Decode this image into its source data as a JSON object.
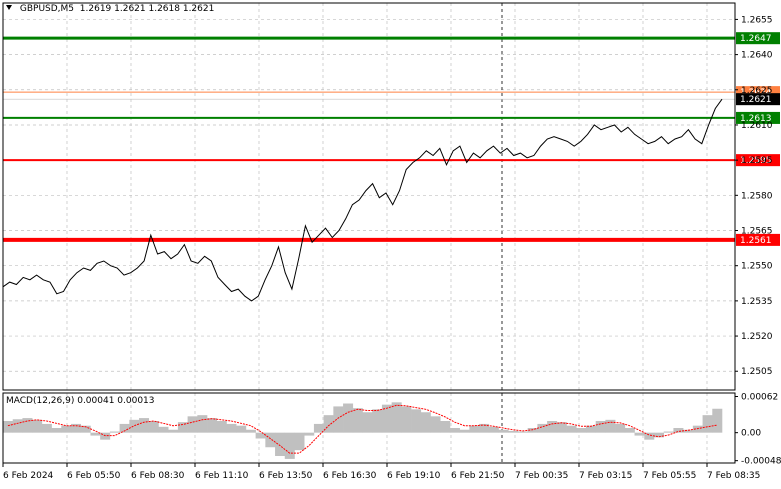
{
  "header": {
    "symbol": "GBPUSD,M5",
    "ohlc": "1.2619 1.2621 1.2618 1.2621"
  },
  "macd_header": "MACD(12,26,9) 0.00041 0.00013",
  "colors": {
    "price": "#000000",
    "support_resistance_red": "#ff0000",
    "target_green": "#008000",
    "orange_line": "#ff8040",
    "grid": "#c0c0c0",
    "histogram": "#c0c0c0",
    "signal": "#ff0000"
  },
  "chart_data": [
    {
      "type": "line",
      "title": "GBPUSD,M5",
      "ylim": [
        1.2497,
        1.2662
      ],
      "y_ticks": [
        "1.2655",
        "1.2640",
        "1.2625",
        "1.2610",
        "1.2595",
        "1.2580",
        "1.2565",
        "1.2550",
        "1.2535",
        "1.2520",
        "1.2505"
      ],
      "x_ticks": [
        "6 Feb 2024",
        "6 Feb 05:50",
        "6 Feb 08:30",
        "6 Feb 11:10",
        "6 Feb 13:50",
        "6 Feb 16:30",
        "6 Feb 19:10",
        "6 Feb 21:50",
        "7 Feb 00:35",
        "7 Feb 03:15",
        "7 Feb 05:55",
        "7 Feb 08:35"
      ],
      "price_path": [
        [
          0,
          1.2541
        ],
        [
          2,
          1.2543
        ],
        [
          4,
          1.2542
        ],
        [
          6,
          1.2545
        ],
        [
          8,
          1.2544
        ],
        [
          10,
          1.2546
        ],
        [
          12,
          1.2544
        ],
        [
          14,
          1.2543
        ],
        [
          16,
          1.2538
        ],
        [
          18,
          1.2539
        ],
        [
          20,
          1.2544
        ],
        [
          22,
          1.2547
        ],
        [
          24,
          1.2549
        ],
        [
          26,
          1.2548
        ],
        [
          28,
          1.2551
        ],
        [
          30,
          1.2552
        ],
        [
          32,
          1.255
        ],
        [
          34,
          1.2549
        ],
        [
          36,
          1.2546
        ],
        [
          38,
          1.2547
        ],
        [
          40,
          1.2549
        ],
        [
          42,
          1.2552
        ],
        [
          44,
          1.2563
        ],
        [
          46,
          1.2555
        ],
        [
          48,
          1.2556
        ],
        [
          50,
          1.2553
        ],
        [
          52,
          1.2555
        ],
        [
          54,
          1.2559
        ],
        [
          56,
          1.2552
        ],
        [
          58,
          1.2551
        ],
        [
          60,
          1.2554
        ],
        [
          62,
          1.2552
        ],
        [
          64,
          1.2545
        ],
        [
          66,
          1.2542
        ],
        [
          68,
          1.2539
        ],
        [
          70,
          1.254
        ],
        [
          72,
          1.2537
        ],
        [
          74,
          1.2535
        ],
        [
          76,
          1.2537
        ],
        [
          78,
          1.2544
        ],
        [
          80,
          1.255
        ],
        [
          82,
          1.2558
        ],
        [
          84,
          1.2547
        ],
        [
          86,
          1.254
        ],
        [
          88,
          1.2553
        ],
        [
          90,
          1.2567
        ],
        [
          92,
          1.256
        ],
        [
          94,
          1.2563
        ],
        [
          96,
          1.2566
        ],
        [
          98,
          1.2562
        ],
        [
          100,
          1.2565
        ],
        [
          102,
          1.257
        ],
        [
          104,
          1.2576
        ],
        [
          106,
          1.2578
        ],
        [
          108,
          1.2582
        ],
        [
          110,
          1.2585
        ],
        [
          112,
          1.2579
        ],
        [
          114,
          1.2581
        ],
        [
          116,
          1.2576
        ],
        [
          118,
          1.2582
        ],
        [
          120,
          1.2591
        ],
        [
          122,
          1.2594
        ],
        [
          124,
          1.2596
        ],
        [
          126,
          1.2599
        ],
        [
          128,
          1.2597
        ],
        [
          130,
          1.26
        ],
        [
          132,
          1.2593
        ],
        [
          134,
          1.2599
        ],
        [
          136,
          1.2601
        ],
        [
          138,
          1.2594
        ],
        [
          140,
          1.2598
        ],
        [
          142,
          1.2596
        ],
        [
          144,
          1.2599
        ],
        [
          146,
          1.2601
        ],
        [
          148,
          1.2598
        ],
        [
          150,
          1.26
        ],
        [
          152,
          1.2597
        ],
        [
          154,
          1.2598
        ],
        [
          156,
          1.2596
        ],
        [
          158,
          1.2597
        ],
        [
          160,
          1.2601
        ],
        [
          162,
          1.2604
        ],
        [
          164,
          1.2605
        ],
        [
          166,
          1.2604
        ],
        [
          168,
          1.2603
        ],
        [
          170,
          1.2601
        ],
        [
          172,
          1.2603
        ],
        [
          174,
          1.2606
        ],
        [
          176,
          1.261
        ],
        [
          178,
          1.2608
        ],
        [
          180,
          1.2609
        ],
        [
          182,
          1.261
        ],
        [
          184,
          1.2607
        ],
        [
          186,
          1.2609
        ],
        [
          188,
          1.2606
        ],
        [
          190,
          1.2604
        ],
        [
          192,
          1.2602
        ],
        [
          194,
          1.2603
        ],
        [
          196,
          1.2605
        ],
        [
          198,
          1.2602
        ],
        [
          200,
          1.2604
        ],
        [
          202,
          1.2605
        ],
        [
          204,
          1.2608
        ],
        [
          206,
          1.2604
        ],
        [
          208,
          1.2602
        ],
        [
          210,
          1.261
        ],
        [
          212,
          1.2617
        ],
        [
          214,
          1.2621
        ]
      ],
      "x_domain": [
        0,
        214
      ],
      "levels": [
        {
          "value": 1.2647,
          "label": "1.2647",
          "color": "#008000"
        },
        {
          "value": 1.2624,
          "label": "1.2624",
          "color": "#ff8040"
        },
        {
          "value": 1.2613,
          "label": "1.2613",
          "color": "#008000"
        },
        {
          "value": 1.2595,
          "label": "1.2595",
          "color": "#ff0000"
        },
        {
          "value": 1.2561,
          "label": "1.2561",
          "color": "#ff0000"
        }
      ],
      "current_price": "1.2621"
    },
    {
      "type": "bar",
      "title": "MACD(12,26,9)",
      "ylim": [
        -0.00052,
        0.00068
      ],
      "y_ticks": [
        "0.00062",
        "0.00",
        "-0.00048"
      ],
      "histogram": [
        0.0002,
        0.00023,
        0.00025,
        0.00022,
        0.00015,
        8e-05,
        0.00012,
        0.00015,
        0.00012,
        -5e-05,
        -0.00012,
        2e-05,
        0.00015,
        0.00022,
        0.00025,
        0.0002,
        0.0001,
        5e-05,
        0.00018,
        0.00028,
        0.0003,
        0.00025,
        0.0002,
        0.00015,
        0.00012,
        5e-05,
        -0.0001,
        -0.00025,
        -0.0004,
        -0.00045,
        -0.0003,
        -5e-05,
        0.00015,
        0.0003,
        0.00045,
        0.0005,
        0.00042,
        0.00035,
        0.0004,
        0.00048,
        0.00052,
        0.00045,
        0.0004,
        0.00035,
        0.00028,
        0.0002,
        8e-05,
        5e-05,
        0.00012,
        0.00015,
        0.0001,
        5e-05,
        3e-05,
        2e-05,
        8e-05,
        0.00015,
        0.0002,
        0.00018,
        0.00012,
        8e-05,
        0.00012,
        0.0002,
        0.00022,
        0.00015,
        8e-05,
        -5e-05,
        -0.00012,
        -8e-05,
        2e-05,
        8e-05,
        5e-05,
        0.00012,
        0.0003,
        0.00041
      ],
      "signal": [
        0.00012,
        0.00016,
        0.0002,
        0.00022,
        0.0002,
        0.00016,
        0.00012,
        0.00012,
        0.0001,
        3e-05,
        -5e-05,
        -5e-05,
        3e-05,
        0.00012,
        0.00018,
        0.0002,
        0.00016,
        0.00012,
        0.00014,
        0.00018,
        0.00022,
        0.00024,
        0.00022,
        0.0002,
        0.00016,
        0.00012,
        2e-05,
        -0.0001,
        -0.00022,
        -0.00035,
        -0.00035,
        -0.00022,
        -5e-05,
        0.00012,
        0.00025,
        0.00035,
        0.0004,
        0.00038,
        0.00038,
        0.00042,
        0.00047,
        0.00046,
        0.00043,
        0.0004,
        0.00034,
        0.00027,
        0.00018,
        0.00012,
        0.00012,
        0.00013,
        0.00011,
        8e-05,
        5e-05,
        3e-05,
        5e-05,
        0.0001,
        0.00015,
        0.00017,
        0.00015,
        0.00011,
        0.00011,
        0.00015,
        0.00018,
        0.00017,
        0.00012,
        4e-05,
        -4e-05,
        -7e-05,
        -4e-05,
        2e-05,
        4e-05,
        7e-05,
        0.0001,
        0.00013
      ]
    }
  ]
}
